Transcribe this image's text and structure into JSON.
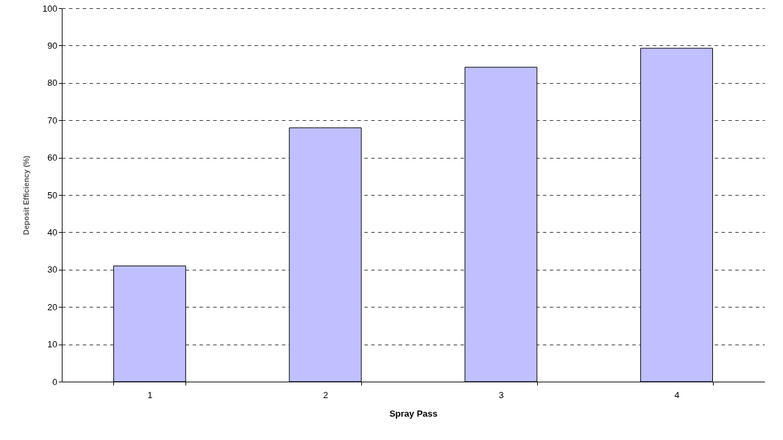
{
  "chart_data": {
    "type": "bar",
    "xlabel": "Spray Pass",
    "ylabel": "Deposit Efficiency (%)",
    "categories": [
      "1",
      "2",
      "3",
      "4"
    ],
    "values": [
      31,
      68,
      84.2,
      89.3
    ],
    "color": "#c0c0ff",
    "ylim": [
      0,
      100
    ],
    "yticks": [
      0,
      10,
      20,
      30,
      40,
      50,
      60,
      70,
      80,
      90,
      100
    ],
    "grid": "y"
  }
}
